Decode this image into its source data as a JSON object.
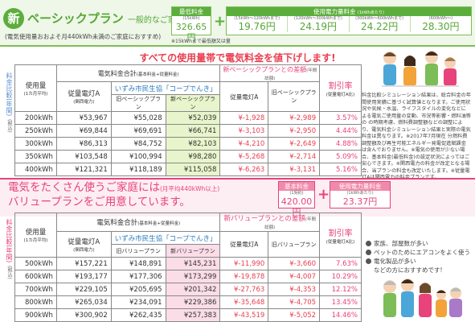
{
  "basic_plan": {
    "badge": "新",
    "title": "ベーシックプラン",
    "subtitle": "一般的なご家庭に",
    "note": "(電気使用量おおよそ月440kWh未満のご家庭におすすめ)",
    "base_fee_label": "最低料金",
    "base_fee_small": "(15kWh)",
    "base_fee_value": "326.65円",
    "usage_fee_label": "使用電力量料金",
    "usage_fee_unit": "(1kWhあたり)",
    "tiers": [
      {
        "range": "(15kWh〜120kWhまで)",
        "price": "19.76円"
      },
      {
        "range": "(120kWh〜300kWhまで)",
        "price": "24.19円"
      },
      {
        "range": "(300kWh〜600kWhまで)",
        "price": "24.22円"
      },
      {
        "range": "(600kWh〜)",
        "price": "28.30円"
      }
    ],
    "fee_note": "※15kWhまで最低額又は量",
    "catch": "すべての使用量帯で電気料金を値下げします!",
    "table_header": "電気料金合計",
    "table_header_sub": "(基本料金+従量料金)",
    "diff_header": "新ベーシックプランとの差額",
    "diff_header_sub": "(年間総額)",
    "rate_header": "割引率",
    "rate_header_sub": "(従量電灯A比)",
    "col_usage": "使用量",
    "col_usage_sub": "(1カ月平均)",
    "col_current": "従量電灯A",
    "col_current_sub": "(関西電力)",
    "coop_label": "いずみ市民生協「コープでんき」",
    "col_old": "旧ベーシックプラン",
    "col_new": "新ベーシックプラン",
    "col_diff_a": "従量電灯A",
    "col_diff_b": "旧ベーシックプラン",
    "side_label": "料金比較(年間)",
    "side_sub": "(税込)",
    "rows": [
      {
        "usage": "200kWh",
        "a": "¥53,967",
        "old": "¥55,028",
        "new": "¥52,039",
        "da": "¥-1,928",
        "db": "¥-2,989",
        "rate": "3.57%"
      },
      {
        "usage": "250kWh",
        "a": "¥69,844",
        "old": "¥69,691",
        "new": "¥66,741",
        "da": "¥-3,103",
        "db": "¥-2,950",
        "rate": "4.44%"
      },
      {
        "usage": "300kWh",
        "a": "¥86,313",
        "old": "¥84,752",
        "new": "¥82,103",
        "da": "¥-4,210",
        "db": "¥-2,649",
        "rate": "4.88%"
      },
      {
        "usage": "350kWh",
        "a": "¥103,548",
        "old": "¥100,994",
        "new": "¥98,280",
        "da": "¥-5,268",
        "db": "¥-2,714",
        "rate": "5.09%"
      },
      {
        "usage": "400kWh",
        "a": "¥121,321",
        "old": "¥118,189",
        "new": "¥115,058",
        "da": "¥-6,263",
        "db": "¥-3,131",
        "rate": "5.16%"
      }
    ],
    "explanation": "料金比較シミュレーション結果は、総合料金の年間使用実績に基づく試算値となります。ご使用状況や気候・水温、ライフスタイルの変化などによる電気ご使用量の変動、市況等影響・燃料油等の の時期考慮、燃料費調整額などの調整により、電気料金シミュレーション結果と実際の電気料金は異なります。※2017年7月現在 分燃料費調整額及び再生可能エネルギー発電促進賦課金は含んでおりません。※電気の使用が少ない場合、基本料金(最低料金)の設定状況によってはご安心できます。※関西電力の料金が改定となる場合、当プランの料金も改定いたします。※従量電灯Aは関西電力の料金プランです。"
  },
  "value_plan": {
    "title_line1": "電気をたくさん使うご家庭には",
    "title_small": "(月平均440kWh以上)",
    "title_line2": "バリュープランをご用意しています。",
    "base_fee_label": "基本料金",
    "base_fee_small": "(1契約)",
    "base_fee_value": "420.00円",
    "usage_fee_label": "使用電力量料金",
    "usage_fee_unit": "(1kWhあたり)",
    "usage_fee_value": "23.37円",
    "table_header": "電気料金合計",
    "table_header_sub": "(基本料金+従量料金)",
    "diff_header": "新バリュープランとの差額",
    "diff_header_sub": "(年間総額)",
    "rate_header": "割引率",
    "rate_header_sub": "(従量電灯A比)",
    "col_usage": "使用量",
    "col_usage_sub": "(1カ月平均)",
    "col_current": "従量電灯A",
    "col_current_sub": "(関西電力)",
    "coop_label": "いずみ市民生協「コープでんき」",
    "col_old": "旧バリュープラン",
    "col_new": "新バリュープラン",
    "col_diff_a": "従量電灯A",
    "col_diff_b": "旧バリュープラン",
    "side_label": "料金比較(年間)",
    "side_sub": "(税込)",
    "rows": [
      {
        "usage": "500kWh",
        "a": "¥157,221",
        "old": "¥148,891",
        "new": "¥145,231",
        "da": "¥-11,990",
        "db": "¥-3,660",
        "rate": "7.63%"
      },
      {
        "usage": "600kWh",
        "a": "¥193,177",
        "old": "¥177,306",
        "new": "¥173,299",
        "da": "¥-19,878",
        "db": "¥-4,007",
        "rate": "10.29%"
      },
      {
        "usage": "700kWh",
        "a": "¥229,105",
        "old": "¥205,695",
        "new": "¥201,342",
        "da": "¥-27,763",
        "db": "¥-4,353",
        "rate": "12.12%"
      },
      {
        "usage": "800kWh",
        "a": "¥265,034",
        "old": "¥234,091",
        "new": "¥229,386",
        "da": "¥-35,648",
        "db": "¥-4,705",
        "rate": "13.45%"
      },
      {
        "usage": "900kWh",
        "a": "¥300,902",
        "old": "¥262,435",
        "new": "¥257,383",
        "da": "¥-43,519",
        "db": "¥-5,052",
        "rate": "14.46%"
      }
    ],
    "bullets": [
      "家族、部屋数が多い",
      "ペットのためにエアコンをよく使う",
      "電化製品が多い"
    ],
    "bullet_note": "などの方におすすめです!"
  }
}
